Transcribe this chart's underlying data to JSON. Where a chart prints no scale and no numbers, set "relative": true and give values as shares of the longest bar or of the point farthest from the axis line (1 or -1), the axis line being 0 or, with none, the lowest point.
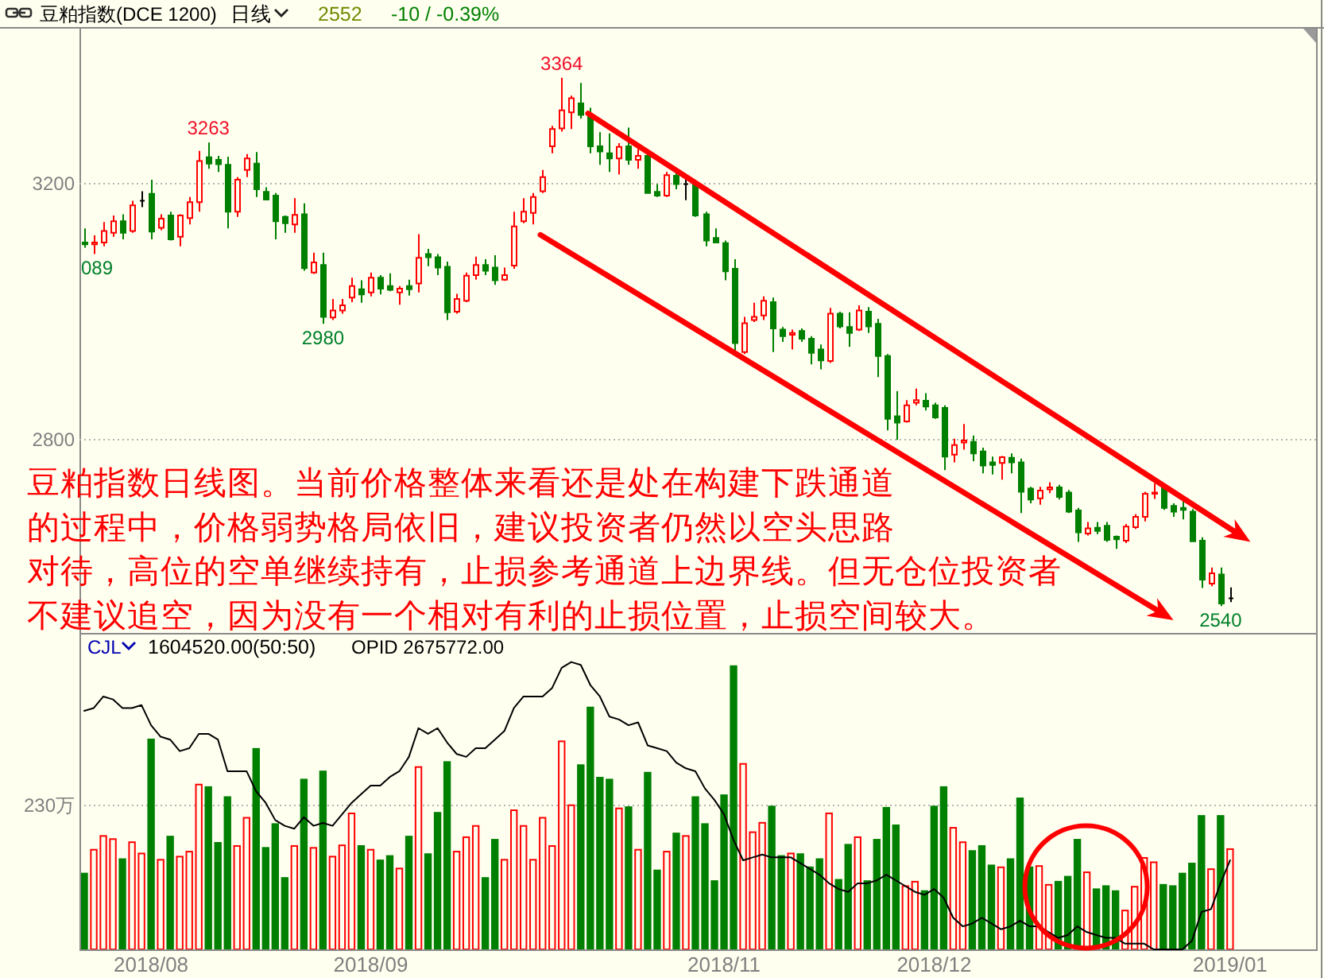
{
  "chart_data": [
    {
      "type": "candlestick",
      "title": "豆粕指数(DCE 1200)",
      "subtitle": "日线",
      "grid": "y",
      "categories": [
        null,
        null,
        null,
        null,
        null,
        null,
        null,
        null,
        null,
        null,
        null,
        null,
        null,
        null,
        null,
        null,
        null,
        null,
        null,
        null,
        null,
        null,
        null,
        null,
        null,
        null,
        null,
        null,
        null,
        null,
        null,
        null,
        null,
        null,
        null,
        null,
        null,
        null,
        null,
        null,
        null,
        null,
        null,
        null,
        null,
        null,
        null,
        null,
        null,
        null,
        null,
        null,
        null,
        null,
        null,
        null,
        null,
        null,
        null,
        null,
        null,
        null,
        null,
        null,
        null,
        null,
        null,
        null,
        null,
        null,
        null,
        null,
        null,
        null,
        null,
        null,
        null,
        null,
        null,
        null,
        null,
        null,
        null,
        null,
        null,
        null,
        null,
        null,
        null,
        null,
        null,
        null,
        null,
        null,
        null,
        null,
        null,
        null,
        null,
        null,
        null,
        null,
        null,
        null,
        null,
        null,
        null,
        null,
        null,
        null,
        null,
        null,
        null,
        null,
        null,
        null,
        null,
        null,
        null,
        null,
        null
      ],
      "ohlc": [
        [
          3107,
          3129,
          3099,
          3104
        ],
        [
          3104,
          3118,
          3089,
          3107
        ],
        [
          3107,
          3139,
          3101,
          3125
        ],
        [
          3122,
          3149,
          3116,
          3140
        ],
        [
          3140,
          3151,
          3112,
          3122
        ],
        [
          3125,
          3172,
          3122,
          3165
        ],
        [
          3172,
          3187,
          3162,
          3172
        ],
        [
          3183,
          3205,
          3112,
          3124
        ],
        [
          3130,
          3151,
          3126,
          3144
        ],
        [
          3149,
          3155,
          3110,
          3112
        ],
        [
          3116,
          3151,
          3101,
          3149
        ],
        [
          3145,
          3178,
          3135,
          3170
        ],
        [
          3170,
          3250,
          3155,
          3234
        ],
        [
          3240,
          3263,
          3222,
          3230
        ],
        [
          3236,
          3242,
          3217,
          3229
        ],
        [
          3228,
          3241,
          3129,
          3155
        ],
        [
          3155,
          3209,
          3147,
          3205
        ],
        [
          3220,
          3245,
          3209,
          3238
        ],
        [
          3230,
          3248,
          3178,
          3190
        ],
        [
          3186,
          3193,
          3173,
          3174
        ],
        [
          3180,
          3184,
          3112,
          3140
        ],
        [
          3147,
          3149,
          3122,
          3137
        ],
        [
          3135,
          3176,
          3122,
          3150
        ],
        [
          3151,
          3168,
          3063,
          3067
        ],
        [
          3060,
          3091,
          3058,
          3076
        ],
        [
          3072,
          3091,
          2980,
          2991
        ],
        [
          2990,
          3019,
          2986,
          3001
        ],
        [
          3001,
          3019,
          2996,
          3009
        ],
        [
          3021,
          3052,
          3014,
          3039
        ],
        [
          3034,
          3048,
          3013,
          3026
        ],
        [
          3029,
          3060,
          3023,
          3052
        ],
        [
          3052,
          3056,
          3026,
          3035
        ],
        [
          3039,
          3059,
          3031,
          3033
        ],
        [
          3029,
          3039,
          3010,
          3035
        ],
        [
          3039,
          3049,
          3024,
          3034
        ],
        [
          3043,
          3120,
          3029,
          3083
        ],
        [
          3089,
          3097,
          3070,
          3084
        ],
        [
          3084,
          3089,
          3056,
          3068
        ],
        [
          3069,
          3077,
          2986,
          2998
        ],
        [
          2999,
          3027,
          2996,
          3019
        ],
        [
          3016,
          3060,
          3014,
          3055
        ],
        [
          3056,
          3085,
          3049,
          3072
        ],
        [
          3072,
          3081,
          3056,
          3063
        ],
        [
          3068,
          3087,
          3041,
          3048
        ],
        [
          3049,
          3068,
          3047,
          3056
        ],
        [
          3071,
          3155,
          3066,
          3132
        ],
        [
          3140,
          3176,
          3137,
          3155
        ],
        [
          3153,
          3184,
          3135,
          3178
        ],
        [
          3187,
          3220,
          3184,
          3209
        ],
        [
          3257,
          3289,
          3246,
          3284
        ],
        [
          3285,
          3364,
          3280,
          3313
        ],
        [
          3310,
          3336,
          3284,
          3332
        ],
        [
          3324,
          3356,
          3300,
          3306
        ],
        [
          3306,
          3317,
          3246,
          3257
        ],
        [
          3257,
          3279,
          3228,
          3249
        ],
        [
          3246,
          3277,
          3217,
          3238
        ],
        [
          3238,
          3262,
          3213,
          3256
        ],
        [
          3257,
          3286,
          3228,
          3236
        ],
        [
          3236,
          3253,
          3222,
          3242
        ],
        [
          3242,
          3246,
          3184,
          3184
        ],
        [
          3186,
          3198,
          3178,
          3180
        ],
        [
          3180,
          3217,
          3178,
          3212
        ],
        [
          3211,
          3217,
          3190,
          3198
        ],
        [
          3198,
          3205,
          3173,
          3198
        ],
        [
          3198,
          3205,
          3147,
          3149
        ],
        [
          3151,
          3155,
          3101,
          3110
        ],
        [
          3114,
          3129,
          3106,
          3107
        ],
        [
          3106,
          3110,
          3048,
          3062
        ],
        [
          3066,
          3081,
          2936,
          2950
        ],
        [
          2936,
          2991,
          2933,
          2981
        ],
        [
          2986,
          3013,
          2983,
          2991
        ],
        [
          2993,
          3023,
          2986,
          3016
        ],
        [
          3014,
          3021,
          2936,
          2973
        ],
        [
          2971,
          2975,
          2952,
          2961
        ],
        [
          2963,
          2971,
          2940,
          2966
        ],
        [
          2969,
          2973,
          2952,
          2957
        ],
        [
          2957,
          2961,
          2917,
          2935
        ],
        [
          2940,
          2948,
          2909,
          2923
        ],
        [
          2922,
          3005,
          2919,
          2996
        ],
        [
          2996,
          2999,
          2973,
          2976
        ],
        [
          2975,
          2998,
          2944,
          2966
        ],
        [
          2971,
          3009,
          2969,
          3001
        ],
        [
          2999,
          3006,
          2966,
          2976
        ],
        [
          2980,
          2988,
          2897,
          2930
        ],
        [
          2930,
          2933,
          2814,
          2832
        ],
        [
          2836,
          2875,
          2799,
          2826
        ],
        [
          2828,
          2861,
          2826,
          2853
        ],
        [
          2857,
          2879,
          2853,
          2861
        ],
        [
          2860,
          2872,
          2845,
          2851
        ],
        [
          2853,
          2857,
          2832,
          2834
        ],
        [
          2849,
          2853,
          2752,
          2773
        ],
        [
          2776,
          2801,
          2764,
          2791
        ],
        [
          2795,
          2824,
          2784,
          2798
        ],
        [
          2796,
          2806,
          2766,
          2778
        ],
        [
          2781,
          2787,
          2747,
          2759
        ],
        [
          2764,
          2773,
          2745,
          2760
        ],
        [
          2763,
          2774,
          2737,
          2772
        ],
        [
          2771,
          2778,
          2747,
          2764
        ],
        [
          2764,
          2770,
          2685,
          2718
        ],
        [
          2723,
          2726,
          2700,
          2706
        ],
        [
          2708,
          2726,
          2698,
          2720
        ],
        [
          2722,
          2733,
          2716,
          2725
        ],
        [
          2725,
          2729,
          2706,
          2710
        ],
        [
          2717,
          2721,
          2685,
          2687
        ],
        [
          2689,
          2693,
          2640,
          2655
        ],
        [
          2653,
          2671,
          2650,
          2661
        ],
        [
          2662,
          2671,
          2652,
          2657
        ],
        [
          2665,
          2671,
          2640,
          2643
        ],
        [
          2648,
          2650,
          2629,
          2644
        ],
        [
          2642,
          2668,
          2638,
          2664
        ],
        [
          2663,
          2683,
          2660,
          2679
        ],
        [
          2679,
          2718,
          2672,
          2715
        ],
        [
          2715,
          2731,
          2707,
          2717
        ],
        [
          2725,
          2729,
          2690,
          2693
        ],
        [
          2696,
          2700,
          2679,
          2687
        ],
        [
          2693,
          2704,
          2675,
          2690
        ],
        [
          2687,
          2691,
          2640,
          2641
        ],
        [
          2642,
          2647,
          2568,
          2581
        ],
        [
          2575,
          2600,
          2571,
          2591
        ],
        [
          2589,
          2600,
          2540,
          2544
        ],
        [
          2552,
          2569,
          2546,
          2552
        ]
      ],
      "colors": [
        "#008000",
        "#ff0000",
        "#ff0000",
        "#ff0000",
        "#008000",
        "#ff0000",
        "#000000",
        "#008000",
        "#ff0000",
        "#008000",
        "#ff0000",
        "#ff0000",
        "#ff0000",
        "#008000",
        "#008000",
        "#008000",
        "#ff0000",
        "#ff0000",
        "#008000",
        "#008000",
        "#008000",
        "#008000",
        "#ff0000",
        "#008000",
        "#ff0000",
        "#008000",
        "#ff0000",
        "#ff0000",
        "#ff0000",
        "#008000",
        "#ff0000",
        "#008000",
        "#008000",
        "#ff0000",
        "#008000",
        "#ff0000",
        "#008000",
        "#008000",
        "#008000",
        "#ff0000",
        "#ff0000",
        "#ff0000",
        "#008000",
        "#008000",
        "#ff0000",
        "#ff0000",
        "#ff0000",
        "#ff0000",
        "#ff0000",
        "#ff0000",
        "#ff0000",
        "#ff0000",
        "#008000",
        "#008000",
        "#008000",
        "#008000",
        "#ff0000",
        "#008000",
        "#ff0000",
        "#008000",
        "#008000",
        "#ff0000",
        "#008000",
        "#000000",
        "#008000",
        "#008000",
        "#008000",
        "#008000",
        "#008000",
        "#ff0000",
        "#ff0000",
        "#ff0000",
        "#008000",
        "#008000",
        "#ff0000",
        "#008000",
        "#008000",
        "#008000",
        "#ff0000",
        "#008000",
        "#008000",
        "#ff0000",
        "#008000",
        "#008000",
        "#008000",
        "#008000",
        "#ff0000",
        "#ff0000",
        "#008000",
        "#008000",
        "#008000",
        "#ff0000",
        "#ff0000",
        "#008000",
        "#008000",
        "#008000",
        "#ff0000",
        "#008000",
        "#008000",
        "#008000",
        "#ff0000",
        "#ff0000",
        "#008000",
        "#008000",
        "#008000",
        "#ff0000",
        "#008000",
        "#008000",
        "#008000",
        "#ff0000",
        "#ff0000",
        "#ff0000",
        "#ff0000",
        "#008000",
        "#008000",
        "#008000",
        "#008000",
        "#008000",
        "#ff0000",
        "#008000",
        "#000000"
      ],
      "ylim": [
        2498,
        3443
      ],
      "yticks": [
        2800,
        3200
      ],
      "annotations": [
        "2552",
        "-10 / -0.39%",
        "豆粕指数日线图。当前价格整体来看还是处在构建下跌通道",
        "的过程中，价格弱势格局依旧，建议投资者仍然以空头思路",
        "对待，高位的空单继续持有，止损参考通道上边界线。但无仓位投资者",
        "不建议追空，因为没有一个相对有利的止损位置，止损空间较大。",
        {
          "text": "089",
          "y": 3089
        },
        {
          "text": "3263",
          "y": 3263
        },
        {
          "text": "2980",
          "y": 2980
        },
        {
          "text": "3364",
          "y": 3364
        },
        {
          "text": "2540",
          "y": 2540
        }
      ]
    },
    {
      "type": "bar",
      "title": "CJL",
      "subtitle": "1604520.00(50:50)",
      "grid": "y",
      "categories": [
        null,
        null,
        null,
        null,
        null,
        null,
        null,
        "2018/08",
        null,
        null,
        null,
        null,
        null,
        null,
        null,
        null,
        null,
        null,
        null,
        null,
        null,
        null,
        null,
        null,
        null,
        null,
        null,
        null,
        null,
        null,
        "2018/09",
        null,
        null,
        null,
        null,
        null,
        null,
        null,
        null,
        null,
        null,
        null,
        null,
        null,
        null,
        null,
        null,
        null,
        null,
        null,
        null,
        null,
        null,
        null,
        null,
        null,
        null,
        null,
        null,
        null,
        null,
        null,
        null,
        null,
        null,
        null,
        null,
        "2018/11",
        null,
        null,
        null,
        null,
        null,
        null,
        null,
        null,
        null,
        null,
        null,
        null,
        null,
        null,
        null,
        null,
        null,
        null,
        null,
        null,
        null,
        "2018/12",
        null,
        null,
        null,
        null,
        null,
        null,
        null,
        null,
        null,
        null,
        null,
        null,
        null,
        null,
        null,
        null,
        null,
        null,
        null,
        null,
        null,
        null,
        null,
        null,
        null,
        null,
        null,
        null,
        null,
        null,
        "2019/01"
      ],
      "values": [
        121,
        159,
        181,
        176,
        144,
        171,
        153,
        335,
        143,
        180,
        148,
        156,
        263,
        259,
        170,
        243,
        165,
        210,
        320,
        162,
        200,
        114,
        165,
        271,
        162,
        284,
        148,
        166,
        217,
        165,
        159,
        142,
        149,
        129,
        180,
        291,
        152,
        218,
        299,
        156,
        179,
        197,
        114,
        175,
        143,
        222,
        197,
        143,
        210,
        165,
        332,
        230,
        294,
        386,
        274,
        271,
        225,
        227,
        159,
        282,
        126,
        156,
        185,
        181,
        243,
        200,
        109,
        246,
        452,
        296,
        187,
        202,
        228,
        149,
        153,
        152,
        131,
        144,
        217,
        111,
        167,
        179,
        109,
        175,
        226,
        198,
        101,
        108,
        93,
        228,
        259,
        194,
        171,
        157,
        165,
        134,
        131,
        144,
        241,
        131,
        133,
        103,
        108,
        116,
        175,
        123,
        96,
        101,
        93,
        62,
        100,
        146,
        139,
        103,
        101,
        121,
        137,
        213,
        128,
        213,
        160
      ],
      "colors": [
        "#008000",
        "#ff0000",
        "#ff0000",
        "#ff0000",
        "#008000",
        "#ff0000",
        "#ff0000",
        "#008000",
        "#ff0000",
        "#008000",
        "#ff0000",
        "#ff0000",
        "#ff0000",
        "#008000",
        "#008000",
        "#008000",
        "#ff0000",
        "#ff0000",
        "#008000",
        "#008000",
        "#008000",
        "#008000",
        "#ff0000",
        "#008000",
        "#ff0000",
        "#008000",
        "#ff0000",
        "#ff0000",
        "#ff0000",
        "#008000",
        "#ff0000",
        "#008000",
        "#008000",
        "#ff0000",
        "#008000",
        "#ff0000",
        "#008000",
        "#008000",
        "#008000",
        "#ff0000",
        "#ff0000",
        "#ff0000",
        "#008000",
        "#008000",
        "#ff0000",
        "#ff0000",
        "#ff0000",
        "#ff0000",
        "#ff0000",
        "#ff0000",
        "#ff0000",
        "#ff0000",
        "#008000",
        "#008000",
        "#008000",
        "#008000",
        "#ff0000",
        "#008000",
        "#ff0000",
        "#008000",
        "#008000",
        "#ff0000",
        "#008000",
        "#ff0000",
        "#008000",
        "#008000",
        "#008000",
        "#008000",
        "#008000",
        "#ff0000",
        "#ff0000",
        "#ff0000",
        "#008000",
        "#008000",
        "#ff0000",
        "#008000",
        "#008000",
        "#008000",
        "#ff0000",
        "#008000",
        "#008000",
        "#ff0000",
        "#008000",
        "#008000",
        "#008000",
        "#008000",
        "#ff0000",
        "#ff0000",
        "#008000",
        "#008000",
        "#008000",
        "#ff0000",
        "#ff0000",
        "#008000",
        "#008000",
        "#008000",
        "#ff0000",
        "#008000",
        "#008000",
        "#008000",
        "#ff0000",
        "#ff0000",
        "#008000",
        "#008000",
        "#008000",
        "#ff0000",
        "#008000",
        "#008000",
        "#008000",
        "#ff0000",
        "#ff0000",
        "#ff0000",
        "#ff0000",
        "#008000",
        "#008000",
        "#008000",
        "#008000",
        "#008000",
        "#ff0000",
        "#008000",
        "#ff0000"
      ],
      "ylim": [
        0,
        505
      ],
      "yticks": [
        {
          "value": 230,
          "label": "230万"
        }
      ]
    },
    {
      "type": "line",
      "title": "OPID 2675772.00",
      "relative": true,
      "color": "#000000",
      "categories": [
        null,
        null,
        null,
        null,
        null,
        null,
        null,
        null,
        null,
        null,
        null,
        null,
        null,
        null,
        null,
        null,
        null,
        null,
        null,
        null,
        null,
        null,
        null,
        null,
        null,
        null,
        null,
        null,
        null,
        null,
        null,
        null,
        null,
        null,
        null,
        null,
        null,
        null,
        null,
        null,
        null,
        null,
        null,
        null,
        null,
        null,
        null,
        null,
        null,
        null,
        null,
        null,
        null,
        null,
        null,
        null,
        null,
        null,
        null,
        null,
        null,
        null,
        null,
        null,
        null,
        null,
        null,
        null,
        null,
        null,
        null,
        null,
        null,
        null,
        null,
        null,
        null,
        null,
        null,
        null,
        null,
        null,
        null,
        null,
        null,
        null,
        null,
        null,
        null,
        null,
        null,
        null,
        null,
        null,
        null,
        null,
        null,
        null,
        null,
        null,
        null,
        null,
        null,
        null,
        null,
        null,
        null,
        null,
        null,
        null,
        null,
        null,
        null,
        null,
        null,
        null,
        null,
        null,
        null,
        null,
        null
      ],
      "values": [
        0.83,
        0.84,
        0.88,
        0.87,
        0.84,
        0.84,
        0.85,
        0.78,
        0.74,
        0.73,
        0.69,
        0.7,
        0.75,
        0.75,
        0.73,
        0.62,
        0.62,
        0.62,
        0.55,
        0.51,
        0.45,
        0.43,
        0.42,
        0.46,
        0.43,
        0.44,
        0.43,
        0.47,
        0.51,
        0.54,
        0.57,
        0.57,
        0.6,
        0.62,
        0.67,
        0.77,
        0.75,
        0.77,
        0.72,
        0.68,
        0.67,
        0.7,
        0.7,
        0.73,
        0.76,
        0.84,
        0.88,
        0.88,
        0.88,
        0.91,
        0.98,
        1,
        0.99,
        0.92,
        0.88,
        0.81,
        0.8,
        0.78,
        0.79,
        0.71,
        0.7,
        0.69,
        0.65,
        0.63,
        0.62,
        0.56,
        0.52,
        0.47,
        0.38,
        0.31,
        0.32,
        0.33,
        0.32,
        0.32,
        0.32,
        0.3,
        0.28,
        0.26,
        0.23,
        0.21,
        0.2,
        0.23,
        0.23,
        0.24,
        0.26,
        0.24,
        0.22,
        0.2,
        0.19,
        0.21,
        0.18,
        0.11,
        0.08,
        0.09,
        0.11,
        0.09,
        0.07,
        0.08,
        0.1,
        0.08,
        0.08,
        0.06,
        0.04,
        0.05,
        0.08,
        0.06,
        0.05,
        0.04,
        0.04,
        0.02,
        0.02,
        0.02,
        0,
        0,
        0,
        0,
        0.03,
        0.13,
        0.14,
        0.23,
        0.31
      ]
    }
  ]
}
